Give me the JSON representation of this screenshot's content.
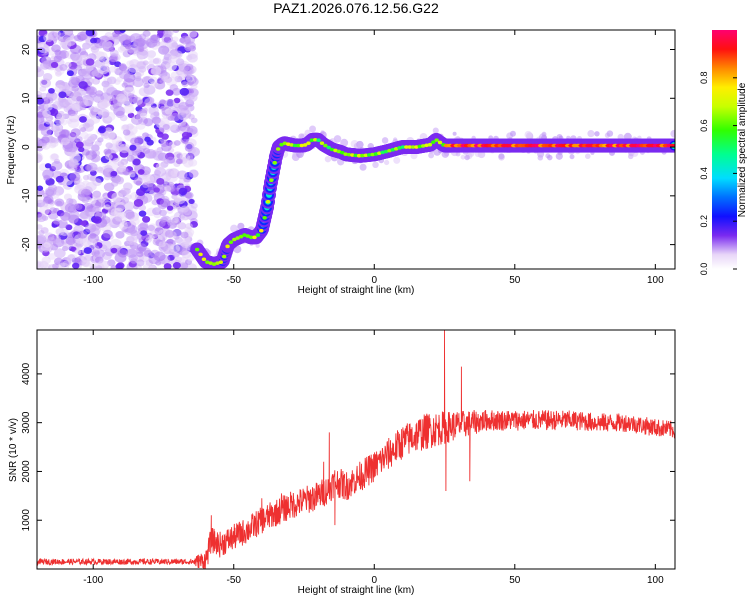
{
  "title": "PAZ1.2026.076.12.56.G22",
  "chart_data": [
    {
      "type": "heatmap",
      "xlabel": "Height of straight line (km)",
      "ylabel": "Frequency (Hz)",
      "xlim": [
        -120,
        107
      ],
      "ylim": [
        -25,
        24
      ],
      "xticks": [
        -100,
        -50,
        0,
        50,
        100
      ],
      "yticks": [
        -20,
        -10,
        0,
        10,
        20
      ],
      "colorbar": {
        "label": "Normalized spectral amplitude",
        "range": [
          0,
          1
        ],
        "ticks": [
          0.0,
          0.2,
          0.4,
          0.6,
          0.8
        ]
      },
      "noise_region_x": [
        -120,
        -64
      ],
      "ridge": {
        "x": [
          -63,
          -60,
          -57,
          -54,
          -52,
          -50,
          -48,
          -46,
          -44,
          -42,
          -40,
          -38,
          -37,
          -36,
          -35,
          -34,
          -33,
          -32,
          -30,
          -28,
          -26,
          -24,
          -22,
          -20,
          -18,
          -15,
          -12,
          -10,
          -5,
          0,
          5,
          10,
          15,
          20,
          22,
          25,
          30,
          40,
          50,
          60,
          70,
          80,
          90,
          100,
          107
        ],
        "y": [
          -21,
          -23.5,
          -24,
          -23.5,
          -20,
          -19,
          -18.5,
          -18,
          -18.5,
          -18.5,
          -17,
          -12,
          -8,
          -5,
          -2,
          0,
          0.5,
          0.8,
          0.5,
          0.3,
          0.3,
          0.5,
          1.5,
          1.5,
          0.5,
          -0.5,
          -1,
          -1.5,
          -1.8,
          -1.5,
          -0.8,
          0,
          0,
          0.5,
          1.5,
          0.3,
          0.3,
          0.3,
          0.3,
          0.3,
          0.3,
          0.3,
          0.3,
          0.3,
          0.3
        ]
      },
      "peak_amplitude_x": [
        25,
        105
      ]
    },
    {
      "type": "line",
      "xlabel": "Height of straight line (km)",
      "ylabel": "SNR (10 * v/v)",
      "xlim": [
        -120,
        107
      ],
      "ylim": [
        0,
        4900
      ],
      "xticks": [
        -100,
        -50,
        0,
        50,
        100
      ],
      "yticks": [
        1000,
        2000,
        3000,
        4000
      ],
      "color": "#ee3030",
      "trend": {
        "x": [
          -120,
          -100,
          -80,
          -65,
          -60,
          -58,
          -55,
          -50,
          -45,
          -40,
          -35,
          -30,
          -25,
          -20,
          -16,
          -14,
          -10,
          -5,
          0,
          5,
          10,
          15,
          20,
          25,
          30,
          35,
          40,
          50,
          60,
          70,
          80,
          90,
          100,
          107
        ],
        "y": [
          150,
          150,
          150,
          150,
          160,
          600,
          500,
          650,
          800,
          1000,
          1150,
          1300,
          1400,
          1500,
          1650,
          1800,
          1700,
          1900,
          2100,
          2350,
          2600,
          2750,
          2850,
          2900,
          2950,
          3000,
          3050,
          3050,
          3050,
          3050,
          3000,
          3000,
          2900,
          2850
        ]
      },
      "noise": {
        "x": [
          -120,
          -65,
          -60,
          0,
          20,
          40,
          107
        ],
        "y": [
          60,
          60,
          260,
          320,
          380,
          220,
          180
        ]
      },
      "spikes": [
        {
          "x": -58,
          "y": 1100
        },
        {
          "x": -40,
          "y": 1450
        },
        {
          "x": -33,
          "y": 1550
        },
        {
          "x": -18,
          "y": 2200
        },
        {
          "x": -16,
          "y": 2800
        },
        {
          "x": -14,
          "y": 900
        },
        {
          "x": 25,
          "y": 4900
        },
        {
          "x": 25.5,
          "y": 1600
        },
        {
          "x": 31,
          "y": 4150
        },
        {
          "x": 34,
          "y": 1800
        }
      ]
    }
  ]
}
